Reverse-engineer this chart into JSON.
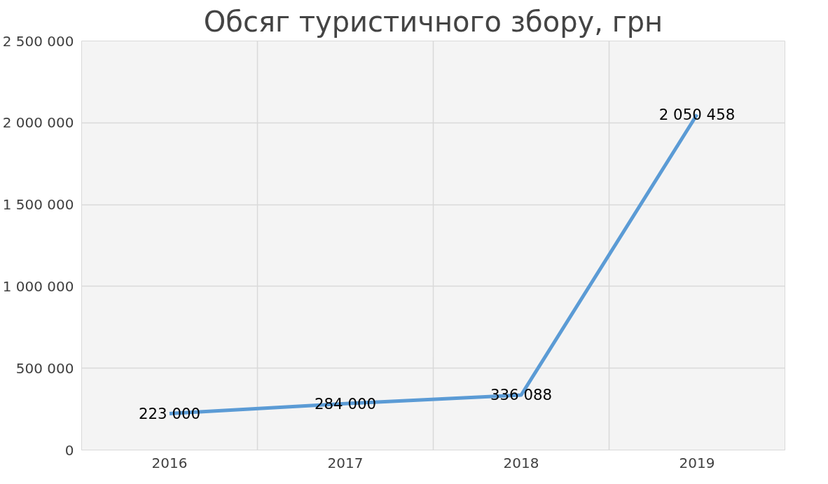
{
  "chart_data": {
    "type": "line",
    "title": "Обсяг туристичного збору, грн",
    "categories": [
      "2016",
      "2017",
      "2018",
      "2019"
    ],
    "series": [
      {
        "color": "#5b9bd5",
        "values": [
          223000,
          284000,
          336088,
          2050458
        ],
        "value_labels": [
          "223 000",
          "284 000",
          "336 088",
          "2 050 458"
        ]
      }
    ],
    "ylim": [
      0,
      2500000
    ],
    "yticks": [
      {
        "value": 0,
        "label": "0"
      },
      {
        "value": 500000,
        "label": "500 000"
      },
      {
        "value": 1000000,
        "label": "1 000 000"
      },
      {
        "value": 1500000,
        "label": "1 500 000"
      },
      {
        "value": 2000000,
        "label": "2 000 000"
      },
      {
        "value": 2500000,
        "label": "2 500 000"
      }
    ],
    "grid": true,
    "marker": "none",
    "line_style": "solid"
  }
}
